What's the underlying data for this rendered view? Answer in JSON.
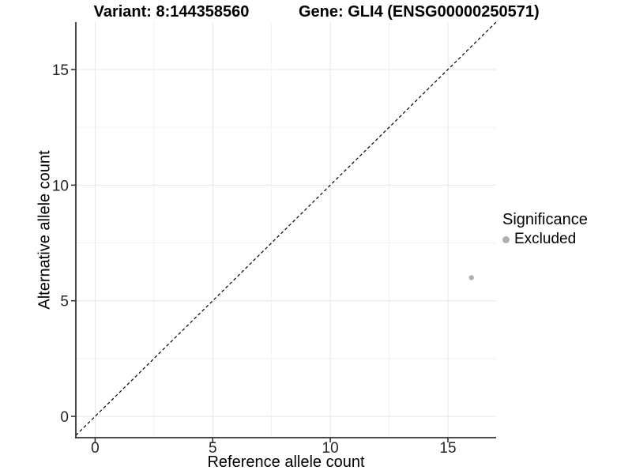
{
  "figure": {
    "titles": {
      "variant": "Variant: 8:144358560",
      "gene": "Gene: GLI4 (ENSG00000250571)"
    }
  },
  "legend": {
    "title": "Significance",
    "items": [
      {
        "label": "Excluded",
        "color": "#b0b0b0"
      }
    ]
  },
  "chart_data": {
    "type": "scatter",
    "title_left": "Variant: 8:144358560",
    "title_right": "Gene: GLI4 (ENSG00000250571)",
    "xlabel": "Reference allele count",
    "ylabel": "Alternative allele count",
    "xlim": [
      -0.82,
      17.05
    ],
    "ylim": [
      -0.92,
      17.05
    ],
    "x_ticks": [
      0,
      5,
      10,
      15
    ],
    "y_ticks": [
      0,
      5,
      10,
      15
    ],
    "x_minor_ticks": [
      2.5,
      7.5,
      12.5
    ],
    "y_minor_ticks": [
      2.5,
      7.5,
      12.5
    ],
    "grid": "major+minor",
    "legend_position": "right",
    "series": [
      {
        "name": "Excluded",
        "color": "#b0b0b0",
        "points": [
          {
            "x": 16,
            "y": 6
          }
        ]
      }
    ],
    "reference_line": {
      "type": "identity y=x",
      "style": "dashed",
      "color": "#000000"
    }
  },
  "colors": {
    "background": "#ffffff",
    "grid_major": "#e7e7e7",
    "grid_minor": "#f2f2f2",
    "axis_line": "#333333",
    "tick_text": "#262626",
    "title_text": "#000000",
    "point": "#b0b0b0"
  }
}
